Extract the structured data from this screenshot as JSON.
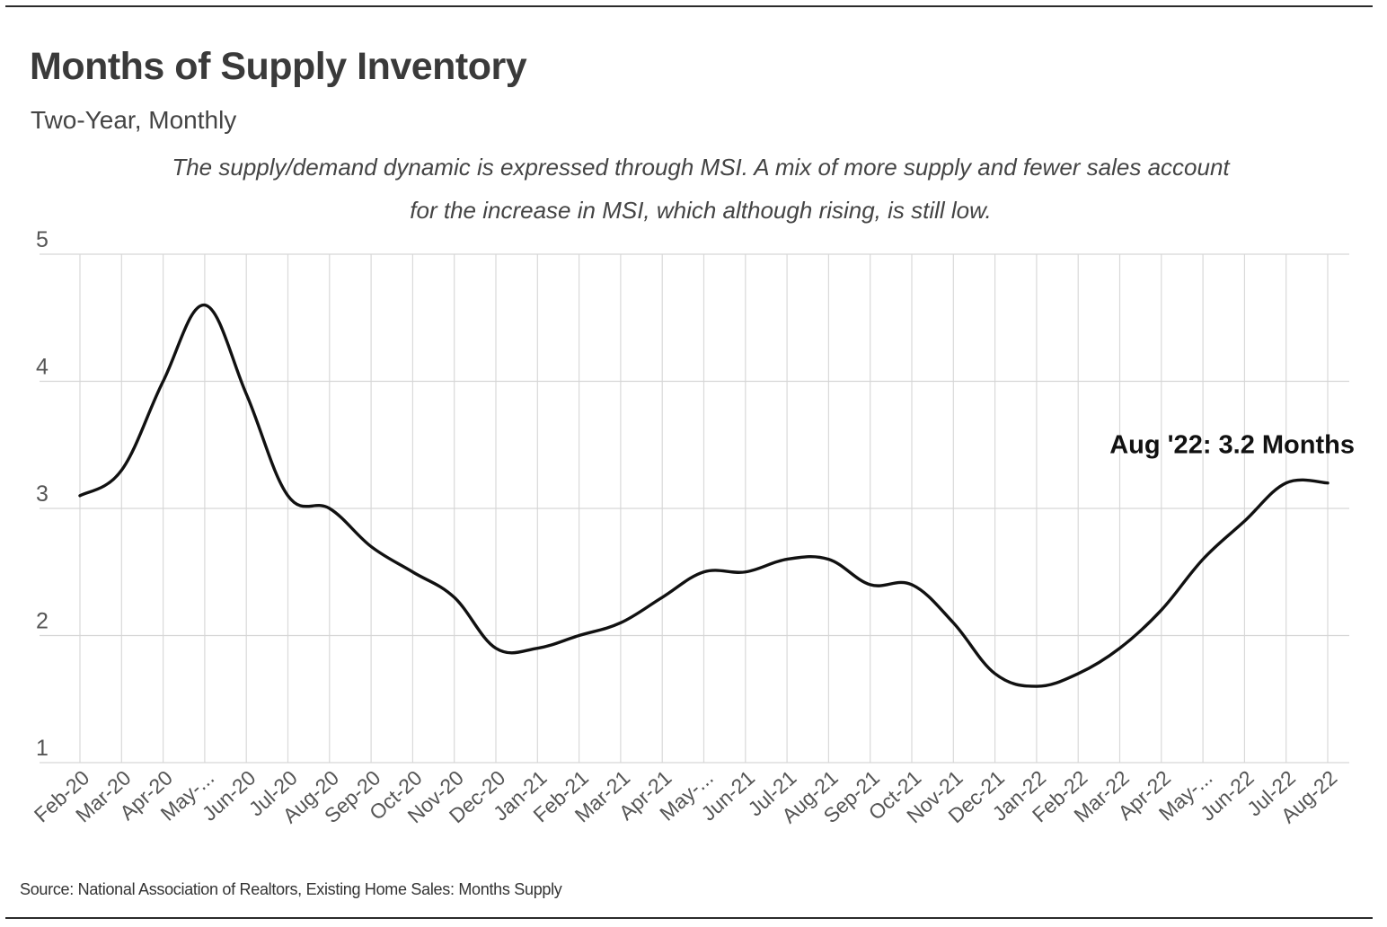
{
  "header": {
    "title": "Months of Supply Inventory",
    "subtitle": "Two-Year, Monthly",
    "note_line1": "The supply/demand dynamic is expressed through MSI. A mix of more supply and fewer sales account",
    "note_line2": "for the increase in MSI, which although rising, is still low."
  },
  "footer": {
    "source": "Source:  National Association of Realtors, Existing Home Sales: Months Supply"
  },
  "chart_data": {
    "type": "line",
    "title": "Months of Supply Inventory",
    "subtitle": "Two-Year, Monthly",
    "xlabel": "",
    "ylabel": "",
    "ylim": [
      1,
      5
    ],
    "yticks": [
      1,
      2,
      3,
      4,
      5
    ],
    "grid": true,
    "line_color": "#111111",
    "categories": [
      "Feb-20",
      "Mar-20",
      "Apr-20",
      "May-...",
      "Jun-20",
      "Jul-20",
      "Aug-20",
      "Sep-20",
      "Oct-20",
      "Nov-20",
      "Dec-20",
      "Jan-21",
      "Feb-21",
      "Mar-21",
      "Apr-21",
      "May-...",
      "Jun-21",
      "Jul-21",
      "Aug-21",
      "Sep-21",
      "Oct-21",
      "Nov-21",
      "Dec-21",
      "Jan-22",
      "Feb-22",
      "Mar-22",
      "Apr-22",
      "May-...",
      "Jun-22",
      "Jul-22",
      "Aug-22"
    ],
    "series": [
      {
        "values": [
          3.1,
          3.3,
          4.0,
          4.6,
          3.9,
          3.1,
          3.0,
          2.7,
          2.5,
          2.3,
          1.9,
          1.9,
          2.0,
          2.1,
          2.3,
          2.5,
          2.5,
          2.6,
          2.6,
          2.4,
          2.4,
          2.1,
          1.7,
          1.6,
          1.7,
          1.9,
          2.2,
          2.6,
          2.9,
          3.2,
          3.2
        ]
      }
    ],
    "annotation": {
      "text": "Aug '22: 3.2 Months",
      "category": "Aug-22",
      "value": 3.2
    }
  }
}
